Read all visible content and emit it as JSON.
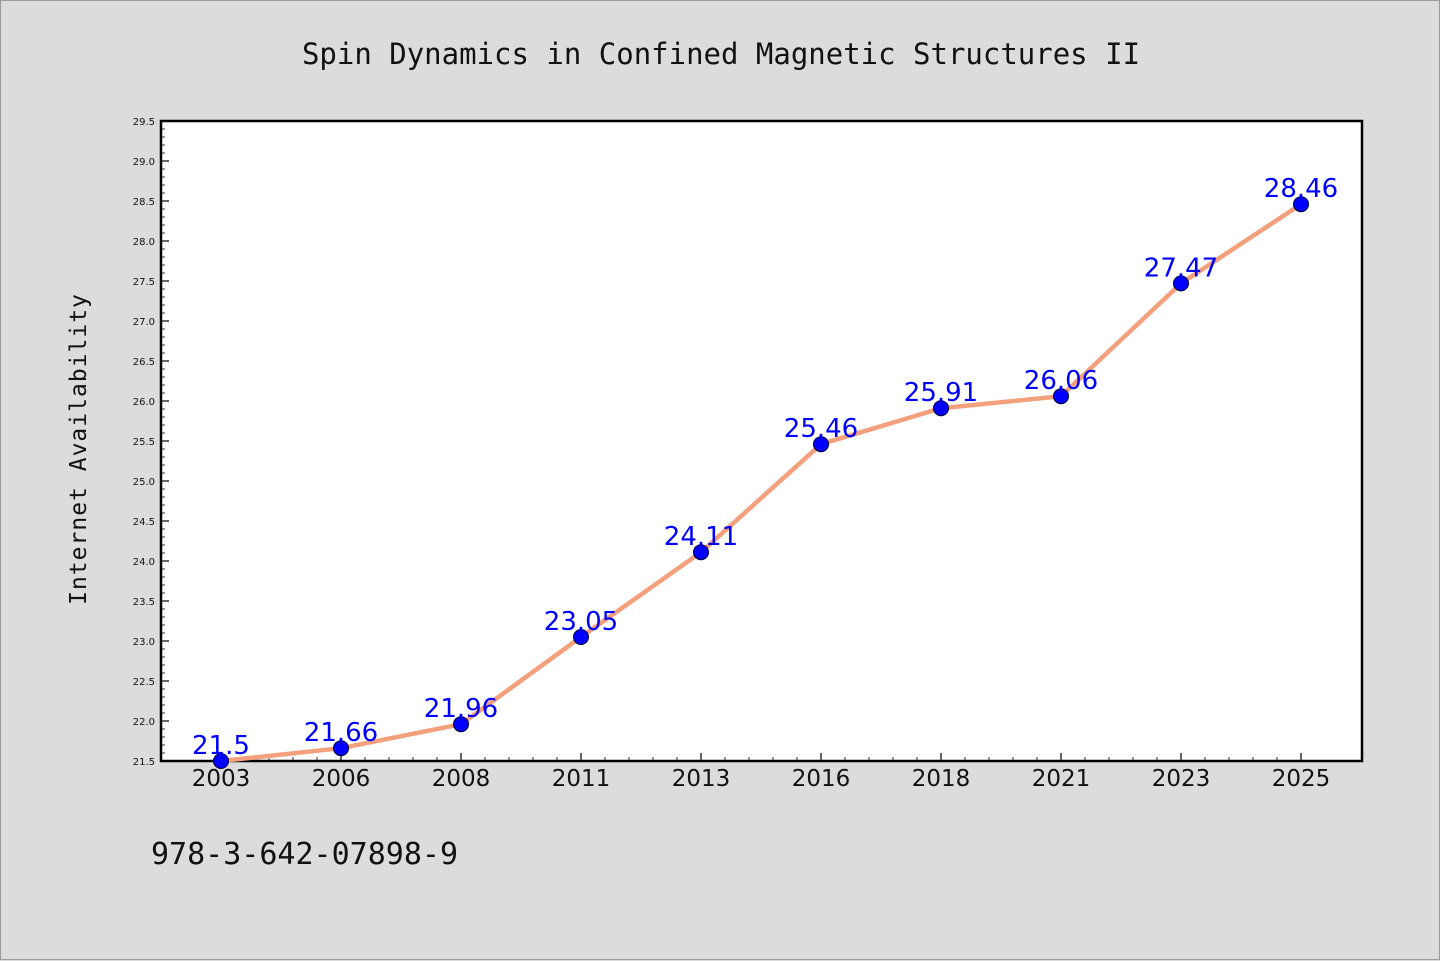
{
  "chart_data": {
    "type": "line",
    "title": "Spin Dynamics in Confined Magnetic Structures II",
    "xlabel": "",
    "ylabel": "Internet Availability",
    "categories": [
      "2003",
      "2006",
      "2008",
      "2011",
      "2013",
      "2016",
      "2018",
      "2021",
      "2023",
      "2025"
    ],
    "series": [
      {
        "values": [
          21.5,
          21.66,
          21.96,
          23.05,
          24.11,
          25.46,
          25.91,
          26.06,
          27.47,
          28.46
        ],
        "labels": [
          "21.5",
          "21.66",
          "21.96",
          "23.05",
          "24.11",
          "25.46",
          "25.91",
          "26.06",
          "27.47",
          "28.46"
        ]
      }
    ],
    "ylim": [
      21.5,
      29.5
    ],
    "yticks": [
      "21.5",
      "22.0",
      "22.5",
      "23.0",
      "23.5",
      "24.0",
      "24.5",
      "25.0",
      "25.5",
      "26.0",
      "26.5",
      "27.0",
      "27.5",
      "28.0",
      "28.5",
      "29.0",
      "29.5"
    ],
    "grid": false,
    "legend": "none",
    "colors": {
      "line": "#f4a07c",
      "marker": "#0000ff",
      "label": "#0000ff",
      "background": "#dcdcdc",
      "plot": "#ffffff"
    }
  },
  "footer": {
    "isbn": "978-3-642-07898-9"
  }
}
